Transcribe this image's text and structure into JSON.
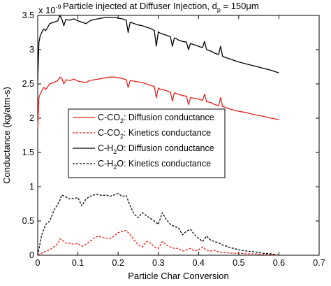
{
  "chart_data": {
    "type": "line",
    "title": {
      "main": "Particle injected at Diffuser Injection, d",
      "sub": "p",
      "tail": " = 150μm"
    },
    "y_multiplier": {
      "base": "x 10",
      "exponent": "-9"
    },
    "xlabel": "Particle Char Conversion",
    "ylabel": "Conductance (kg/atm-s)",
    "xlim": [
      0,
      0.7
    ],
    "ylim": [
      0,
      3.5
    ],
    "x_ticks": [
      "0",
      "0.1",
      "0.2",
      "0.3",
      "0.4",
      "0.5",
      "0.6",
      "0.7"
    ],
    "y_ticks": [
      "0",
      "0.5",
      "1",
      "1.5",
      "2",
      "2.5",
      "3",
      "3.5"
    ],
    "grid": false,
    "legend_position": "center-left",
    "series": [
      {
        "name": "C-CO2: Diffusion conductance",
        "legend": {
          "pre": "C-CO",
          "sub": "2",
          "post": ": Diffusion conductance"
        },
        "color": "#e8201a",
        "style": "solid",
        "x": [
          0.0,
          0.003,
          0.006,
          0.01,
          0.015,
          0.02,
          0.03,
          0.04,
          0.05,
          0.055,
          0.06,
          0.065,
          0.07,
          0.08,
          0.09,
          0.1,
          0.11,
          0.12,
          0.13,
          0.14,
          0.15,
          0.16,
          0.17,
          0.18,
          0.19,
          0.2,
          0.21,
          0.22,
          0.225,
          0.23,
          0.24,
          0.25,
          0.26,
          0.27,
          0.28,
          0.29,
          0.295,
          0.3,
          0.305,
          0.31,
          0.32,
          0.33,
          0.335,
          0.34,
          0.345,
          0.35,
          0.36,
          0.37,
          0.375,
          0.38,
          0.39,
          0.4,
          0.41,
          0.415,
          0.42,
          0.43,
          0.44,
          0.45,
          0.455,
          0.46,
          0.47,
          0.48,
          0.5,
          0.52,
          0.54,
          0.56,
          0.58,
          0.6
        ],
        "y": [
          1.85,
          2.3,
          2.35,
          2.4,
          2.45,
          2.42,
          2.5,
          2.52,
          2.55,
          2.6,
          2.58,
          2.5,
          2.56,
          2.55,
          2.57,
          2.54,
          2.53,
          2.52,
          2.55,
          2.56,
          2.57,
          2.58,
          2.59,
          2.6,
          2.6,
          2.59,
          2.58,
          2.56,
          2.45,
          2.55,
          2.54,
          2.53,
          2.52,
          2.5,
          2.48,
          2.46,
          2.3,
          2.44,
          2.42,
          2.42,
          2.4,
          2.38,
          2.25,
          2.37,
          2.36,
          2.35,
          2.33,
          2.32,
          2.2,
          2.3,
          2.29,
          2.28,
          2.26,
          2.35,
          2.24,
          2.23,
          2.2,
          2.18,
          2.3,
          2.17,
          2.15,
          2.13,
          2.1,
          2.08,
          2.05,
          2.03,
          2.0,
          1.98
        ]
      },
      {
        "name": "C-CO2: Kinetics conductance",
        "legend": {
          "pre": "C-CO",
          "sub": "2",
          "post": ": Kinetics conductance"
        },
        "color": "#e8201a",
        "style": "dashed",
        "x": [
          0.0,
          0.01,
          0.02,
          0.03,
          0.04,
          0.05,
          0.055,
          0.06,
          0.07,
          0.08,
          0.09,
          0.1,
          0.11,
          0.12,
          0.13,
          0.14,
          0.15,
          0.16,
          0.17,
          0.18,
          0.19,
          0.2,
          0.21,
          0.22,
          0.23,
          0.24,
          0.25,
          0.26,
          0.27,
          0.28,
          0.29,
          0.3,
          0.31,
          0.32,
          0.33,
          0.34,
          0.35,
          0.36,
          0.37,
          0.38,
          0.39,
          0.4,
          0.41,
          0.42,
          0.43,
          0.44,
          0.45,
          0.46,
          0.47,
          0.48,
          0.5,
          0.52,
          0.54,
          0.56,
          0.58,
          0.6
        ],
        "y": [
          0.0,
          0.03,
          0.06,
          0.08,
          0.12,
          0.17,
          0.24,
          0.22,
          0.18,
          0.17,
          0.16,
          0.17,
          0.13,
          0.16,
          0.2,
          0.25,
          0.28,
          0.26,
          0.25,
          0.24,
          0.28,
          0.33,
          0.35,
          0.36,
          0.3,
          0.22,
          0.15,
          0.12,
          0.2,
          0.18,
          0.12,
          0.1,
          0.2,
          0.15,
          0.12,
          0.1,
          0.1,
          0.06,
          0.08,
          0.1,
          0.06,
          0.08,
          0.12,
          0.07,
          0.06,
          0.07,
          0.05,
          0.04,
          0.04,
          0.03,
          0.03,
          0.02,
          0.02,
          0.01,
          0.01,
          0.0
        ]
      },
      {
        "name": "C-H2O: Diffusion conductance",
        "legend": {
          "pre": "C-H",
          "sub": "2",
          "post": "O: Diffusion conductance"
        },
        "color": "#000000",
        "style": "solid",
        "x": [
          0.0,
          0.003,
          0.006,
          0.01,
          0.015,
          0.02,
          0.03,
          0.04,
          0.05,
          0.055,
          0.06,
          0.065,
          0.07,
          0.08,
          0.09,
          0.1,
          0.11,
          0.12,
          0.13,
          0.14,
          0.15,
          0.16,
          0.17,
          0.18,
          0.19,
          0.2,
          0.21,
          0.22,
          0.225,
          0.23,
          0.24,
          0.25,
          0.26,
          0.27,
          0.28,
          0.29,
          0.295,
          0.3,
          0.305,
          0.31,
          0.32,
          0.33,
          0.335,
          0.34,
          0.345,
          0.35,
          0.36,
          0.37,
          0.375,
          0.38,
          0.39,
          0.4,
          0.41,
          0.415,
          0.42,
          0.43,
          0.44,
          0.45,
          0.455,
          0.46,
          0.47,
          0.48,
          0.5,
          0.52,
          0.54,
          0.56,
          0.58,
          0.6
        ],
        "y": [
          2.55,
          3.1,
          3.2,
          3.25,
          3.3,
          3.28,
          3.38,
          3.4,
          3.42,
          3.5,
          3.45,
          3.35,
          3.44,
          3.43,
          3.45,
          3.42,
          3.4,
          3.38,
          3.42,
          3.44,
          3.45,
          3.46,
          3.47,
          3.47,
          3.47,
          3.46,
          3.45,
          3.43,
          3.25,
          3.4,
          3.38,
          3.36,
          3.35,
          3.33,
          3.31,
          3.28,
          3.05,
          3.26,
          3.24,
          3.23,
          3.21,
          3.19,
          3.05,
          3.17,
          3.16,
          3.14,
          3.12,
          3.11,
          3.0,
          3.09,
          3.07,
          3.05,
          3.03,
          3.12,
          3.0,
          2.98,
          2.95,
          2.93,
          3.05,
          2.9,
          2.88,
          2.86,
          2.82,
          2.79,
          2.76,
          2.73,
          2.7,
          2.66
        ]
      },
      {
        "name": "C-H2O: Kinetics conductance",
        "legend": {
          "pre": "C-H",
          "sub": "2",
          "post": "O: Kinetics conductance"
        },
        "color": "#000000",
        "style": "dashed",
        "x": [
          0.0,
          0.01,
          0.02,
          0.03,
          0.04,
          0.05,
          0.055,
          0.06,
          0.07,
          0.08,
          0.09,
          0.1,
          0.11,
          0.12,
          0.13,
          0.14,
          0.15,
          0.16,
          0.17,
          0.18,
          0.19,
          0.2,
          0.21,
          0.22,
          0.23,
          0.24,
          0.25,
          0.26,
          0.27,
          0.28,
          0.29,
          0.3,
          0.31,
          0.32,
          0.33,
          0.34,
          0.35,
          0.36,
          0.37,
          0.38,
          0.39,
          0.4,
          0.41,
          0.42,
          0.43,
          0.44,
          0.45,
          0.46,
          0.47,
          0.48,
          0.5,
          0.52,
          0.54,
          0.56,
          0.58,
          0.6
        ],
        "y": [
          0.0,
          0.3,
          0.45,
          0.5,
          0.65,
          0.75,
          0.8,
          0.88,
          0.85,
          0.82,
          0.83,
          0.84,
          0.72,
          0.82,
          0.86,
          0.88,
          0.89,
          0.87,
          0.88,
          0.86,
          0.88,
          0.9,
          0.86,
          0.87,
          0.72,
          0.6,
          0.55,
          0.62,
          0.58,
          0.54,
          0.5,
          0.45,
          0.62,
          0.52,
          0.45,
          0.42,
          0.4,
          0.3,
          0.35,
          0.38,
          0.3,
          0.25,
          0.2,
          0.28,
          0.22,
          0.2,
          0.18,
          0.15,
          0.13,
          0.11,
          0.08,
          0.06,
          0.05,
          0.03,
          0.02,
          0.0
        ]
      }
    ]
  }
}
